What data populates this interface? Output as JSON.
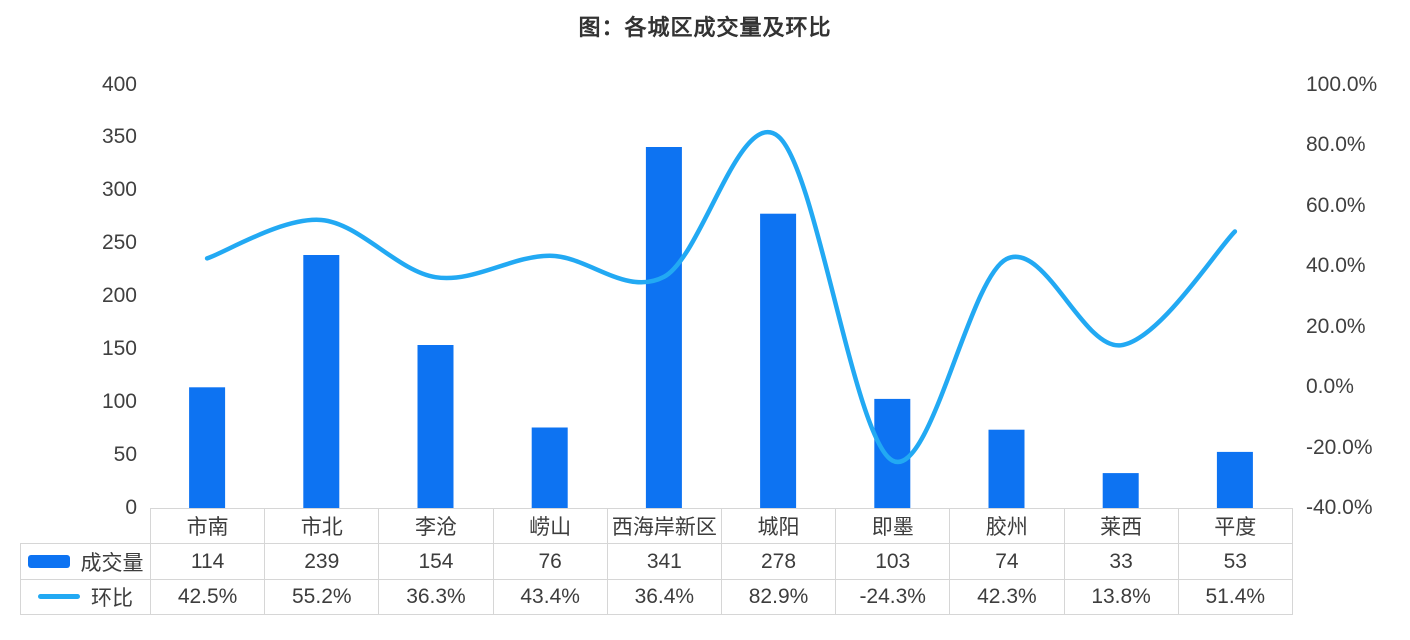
{
  "title": "图：各城区成交量及环比",
  "colors": {
    "bar": "#0d73f2",
    "line": "#22a9f3",
    "title_text": "#333333",
    "axis_text": "#404040",
    "table_text": "#3d3d3d",
    "table_border": "#d6d6d6",
    "background": "#ffffff"
  },
  "chart_data": {
    "type": "bar",
    "subtype": "combo-bar-line",
    "title": "图：各城区成交量及环比",
    "categories": [
      "市南",
      "市北",
      "李沧",
      "崂山",
      "西海岸新区",
      "城阳",
      "即墨",
      "胶州",
      "莱西",
      "平度"
    ],
    "series": [
      {
        "name": "成交量",
        "type": "bar",
        "axis": "left",
        "values": [
          114,
          239,
          154,
          76,
          341,
          278,
          103,
          74,
          33,
          53
        ]
      },
      {
        "name": "环比",
        "type": "line",
        "axis": "right",
        "unit": "%",
        "values": [
          42.5,
          55.2,
          36.3,
          43.4,
          36.4,
          82.9,
          -24.3,
          42.3,
          13.8,
          51.4
        ]
      }
    ],
    "left_axis": {
      "min": 0,
      "max": 400,
      "ticks": [
        "400",
        "350",
        "300",
        "250",
        "200",
        "150",
        "100",
        "50",
        "0"
      ]
    },
    "right_axis": {
      "min": -40,
      "max": 100,
      "ticks": [
        "100.0%",
        "80.0%",
        "60.0%",
        "40.0%",
        "20.0%",
        "0.0%",
        "-20.0%",
        "-40.0%"
      ]
    },
    "grid": false,
    "legend_position": "table-left",
    "line_smooth": true
  },
  "table": {
    "rows": [
      {
        "legend": "成交量",
        "marker": "bar-swatch",
        "values": [
          "114",
          "239",
          "154",
          "76",
          "341",
          "278",
          "103",
          "74",
          "33",
          "53"
        ]
      },
      {
        "legend": "环比",
        "marker": "line-swatch",
        "values": [
          "42.5%",
          "55.2%",
          "36.3%",
          "43.4%",
          "36.4%",
          "82.9%",
          "-24.3%",
          "42.3%",
          "13.8%",
          "51.4%"
        ]
      }
    ]
  }
}
